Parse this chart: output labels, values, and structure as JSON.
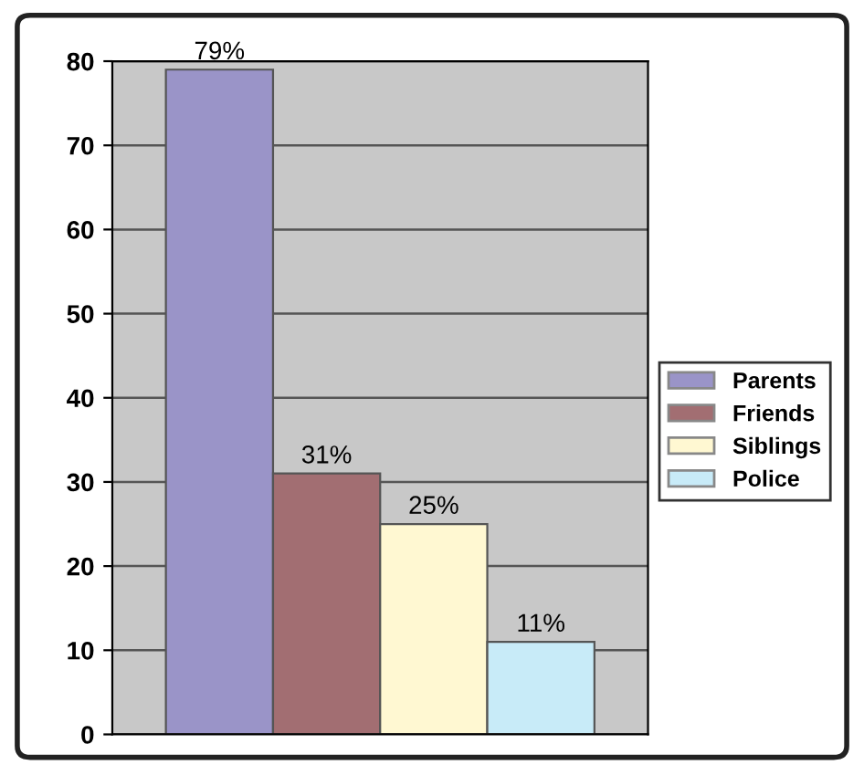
{
  "chart_data": {
    "type": "bar",
    "categories": [
      null
    ],
    "series": [
      {
        "name": "Parents",
        "color": "#9a94c8",
        "values": [
          79
        ],
        "value_labels": [
          "79%"
        ]
      },
      {
        "name": "Friends",
        "color": "#a26e72",
        "values": [
          31
        ],
        "value_labels": [
          "31%"
        ]
      },
      {
        "name": "Siblings",
        "color": "#fff8d2",
        "values": [
          25
        ],
        "value_labels": [
          "25%"
        ]
      },
      {
        "name": "Police",
        "color": "#c8ebf8",
        "values": [
          11
        ],
        "value_labels": [
          "11%"
        ]
      }
    ],
    "ylim": [
      0,
      80
    ],
    "yticks": [
      0,
      10,
      20,
      30,
      40,
      50,
      60,
      70,
      80
    ],
    "grid": "y",
    "legend": "right"
  }
}
